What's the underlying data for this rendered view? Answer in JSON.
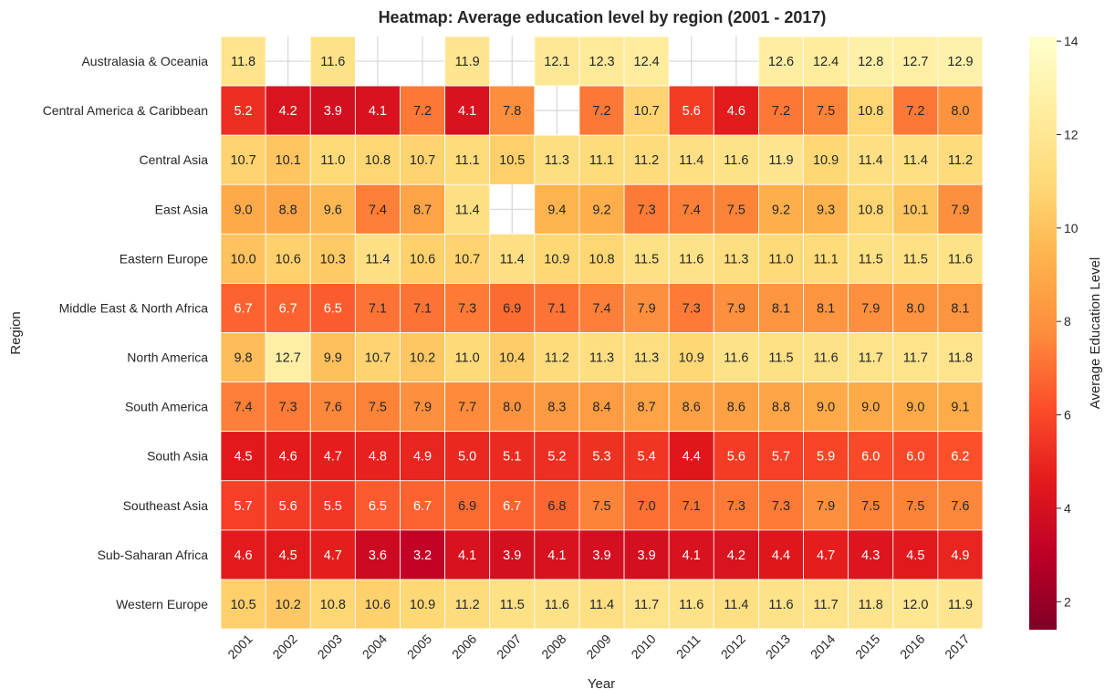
{
  "chart_data": {
    "type": "heatmap",
    "title": "Heatmap: Average education level by region (2001 - 2017)",
    "xlabel": "Year",
    "ylabel": "Region",
    "colorbar_label": "Average Education Level",
    "colormap": "YlOrRd_r",
    "color_range": [
      1.4,
      14.1
    ],
    "colorbar_ticks": [
      2,
      4,
      6,
      8,
      10,
      12,
      14
    ],
    "missing_cell_color": "#ffffff",
    "x": [
      "2001",
      "2002",
      "2003",
      "2004",
      "2005",
      "2006",
      "2007",
      "2008",
      "2009",
      "2010",
      "2011",
      "2012",
      "2013",
      "2014",
      "2015",
      "2016",
      "2017"
    ],
    "y": [
      "Australasia & Oceania",
      "Central America & Caribbean",
      "Central Asia",
      "East Asia",
      "Eastern Europe",
      "Middle East & North Africa",
      "North America",
      "South America",
      "South Asia",
      "Southeast Asia",
      "Sub-Saharan Africa",
      "Western Europe"
    ],
    "values": [
      [
        11.8,
        null,
        11.6,
        null,
        null,
        11.9,
        null,
        12.1,
        12.3,
        12.4,
        null,
        null,
        12.6,
        12.4,
        12.8,
        12.7,
        12.9
      ],
      [
        5.2,
        4.2,
        3.9,
        4.1,
        7.2,
        4.1,
        7.8,
        null,
        7.2,
        10.7,
        5.6,
        4.6,
        7.2,
        7.5,
        10.8,
        7.2,
        8.0
      ],
      [
        10.7,
        10.1,
        11.0,
        10.8,
        10.7,
        11.1,
        10.5,
        11.3,
        11.1,
        11.2,
        11.4,
        11.6,
        11.9,
        10.9,
        11.4,
        11.4,
        11.2
      ],
      [
        9.0,
        8.8,
        9.6,
        7.4,
        8.7,
        11.4,
        null,
        9.4,
        9.2,
        7.3,
        7.4,
        7.5,
        9.2,
        9.3,
        10.8,
        10.1,
        7.9
      ],
      [
        10.0,
        10.6,
        10.3,
        11.4,
        10.6,
        10.7,
        11.4,
        10.9,
        10.8,
        11.5,
        11.6,
        11.3,
        11.0,
        11.1,
        11.5,
        11.5,
        11.6
      ],
      [
        6.7,
        6.7,
        6.5,
        7.1,
        7.1,
        7.3,
        6.9,
        7.1,
        7.4,
        7.9,
        7.3,
        7.9,
        8.1,
        8.1,
        7.9,
        8.0,
        8.1
      ],
      [
        9.8,
        12.7,
        9.9,
        10.7,
        10.2,
        11.0,
        10.4,
        11.2,
        11.3,
        11.3,
        10.9,
        11.6,
        11.5,
        11.6,
        11.7,
        11.7,
        11.8
      ],
      [
        7.4,
        7.3,
        7.6,
        7.5,
        7.9,
        7.7,
        8.0,
        8.3,
        8.4,
        8.7,
        8.6,
        8.6,
        8.8,
        9.0,
        9.0,
        9.0,
        9.1
      ],
      [
        4.5,
        4.6,
        4.7,
        4.8,
        4.9,
        5.0,
        5.1,
        5.2,
        5.3,
        5.4,
        4.4,
        5.6,
        5.7,
        5.9,
        6.0,
        6.0,
        6.2
      ],
      [
        5.7,
        5.6,
        5.5,
        6.5,
        6.7,
        6.9,
        6.7,
        6.8,
        7.5,
        7.0,
        7.1,
        7.3,
        7.3,
        7.9,
        7.5,
        7.5,
        7.6
      ],
      [
        4.6,
        4.5,
        4.7,
        3.6,
        3.2,
        4.1,
        3.9,
        4.1,
        3.9,
        3.9,
        4.1,
        4.2,
        4.4,
        4.7,
        4.3,
        4.5,
        4.9
      ],
      [
        10.5,
        10.2,
        10.8,
        10.6,
        10.9,
        11.2,
        11.5,
        11.6,
        11.4,
        11.7,
        11.6,
        11.4,
        11.6,
        11.7,
        11.8,
        12.0,
        11.9
      ]
    ]
  }
}
